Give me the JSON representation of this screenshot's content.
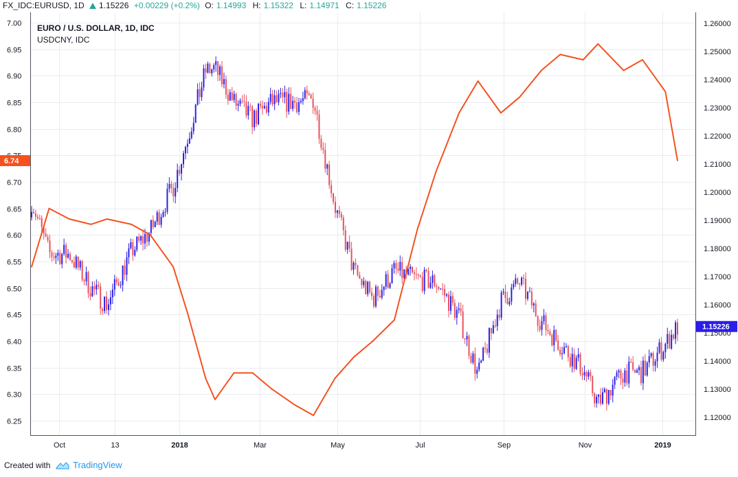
{
  "header": {
    "symbol": "FX_IDC:EURUSD, 1D",
    "last": "1.15226",
    "change": "+0.00229 (+0.2%)",
    "o_label": "O:",
    "o_value": "1.14993",
    "h_label": "H:",
    "h_value": "1.15322",
    "l_label": "L:",
    "l_value": "1.14971",
    "c_label": "C:",
    "c_value": "1.15226"
  },
  "footer": {
    "text": "Created with",
    "brand": "TradingView"
  },
  "colors": {
    "candle_up": "#2a1ee8",
    "candle_down": "#e8505b",
    "line": "#f4511e",
    "grid": "#e9ecf2",
    "axis_text": "#131722"
  },
  "chart_data": {
    "type": "line",
    "title": "EURO / U.S. DOLLAR, 1D, IDC",
    "subtitle": "USDCNY, IDC",
    "x_ticks": [
      "Oct",
      "13",
      "2018",
      "Mar",
      "May",
      "Jul",
      "Sep",
      "Nov",
      "2019"
    ],
    "x_ticks_bold": [
      "2018",
      "2019"
    ],
    "left_axis": {
      "ticks": [
        "7.00",
        "6.95",
        "6.90",
        "6.85",
        "6.80",
        "6.75",
        "6.70",
        "6.65",
        "6.60",
        "6.55",
        "6.50",
        "6.45",
        "6.40",
        "6.35",
        "6.30",
        "6.25"
      ],
      "ylim": [
        6.23,
        7.0
      ],
      "last_value_label": "6.74"
    },
    "right_axis": {
      "ticks": [
        "1.26000",
        "1.25000",
        "1.24000",
        "1.23000",
        "1.22000",
        "1.21000",
        "1.20000",
        "1.19000",
        "1.18000",
        "1.17000",
        "1.16000",
        "1.15000",
        "1.14000",
        "1.13000",
        "1.12000"
      ],
      "ylim": [
        1.1175,
        1.2625
      ],
      "last_value_label": "1.15226"
    },
    "grid": true,
    "series": [
      {
        "name": "EURO / U.S. DOLLAR, 1D, IDC",
        "style": "candles",
        "axis": "right",
        "x": [
          "2017-09-18",
          "2017-10-01",
          "2017-10-16",
          "2017-11-01",
          "2017-11-13",
          "2017-12-01",
          "2017-12-15",
          "2018-01-01",
          "2018-01-12",
          "2018-01-25",
          "2018-02-01",
          "2018-02-15",
          "2018-03-01",
          "2018-03-15",
          "2018-04-01",
          "2018-04-15",
          "2018-05-01",
          "2018-05-15",
          "2018-05-29",
          "2018-06-14",
          "2018-07-01",
          "2018-07-15",
          "2018-08-01",
          "2018-08-15",
          "2018-09-01",
          "2018-09-15",
          "2018-10-01",
          "2018-10-15",
          "2018-11-01",
          "2018-11-12",
          "2018-12-01",
          "2018-12-15",
          "2019-01-01",
          "2019-01-10"
        ],
        "close": [
          1.197,
          1.178,
          1.178,
          1.166,
          1.16,
          1.179,
          1.186,
          1.202,
          1.22,
          1.243,
          1.244,
          1.232,
          1.226,
          1.232,
          1.232,
          1.233,
          1.195,
          1.172,
          1.162,
          1.172,
          1.169,
          1.168,
          1.156,
          1.135,
          1.161,
          1.168,
          1.154,
          1.146,
          1.137,
          1.125,
          1.136,
          1.136,
          1.146,
          1.152
        ]
      },
      {
        "name": "USDCNY, IDC",
        "style": "line",
        "axis": "left",
        "x": [
          "2017-09-18",
          "2017-10-01",
          "2017-10-16",
          "2017-11-01",
          "2017-11-13",
          "2017-12-01",
          "2017-12-15",
          "2018-01-01",
          "2018-01-12",
          "2018-01-25",
          "2018-02-01",
          "2018-02-15",
          "2018-03-01",
          "2018-03-15",
          "2018-04-01",
          "2018-04-15",
          "2018-05-01",
          "2018-05-15",
          "2018-05-29",
          "2018-06-14",
          "2018-07-01",
          "2018-07-15",
          "2018-08-01",
          "2018-08-15",
          "2018-09-01",
          "2018-09-15",
          "2018-10-01",
          "2018-10-15",
          "2018-11-01",
          "2018-11-12",
          "2018-12-01",
          "2018-12-15",
          "2019-01-01",
          "2019-01-10"
        ],
        "y": [
          6.54,
          6.65,
          6.63,
          6.62,
          6.63,
          6.62,
          6.6,
          6.54,
          6.45,
          6.33,
          6.29,
          6.34,
          6.34,
          6.31,
          6.28,
          6.26,
          6.33,
          6.37,
          6.4,
          6.44,
          6.61,
          6.72,
          6.83,
          6.89,
          6.83,
          6.86,
          6.91,
          6.94,
          6.93,
          6.96,
          6.91,
          6.93,
          6.87,
          6.74
        ]
      }
    ]
  }
}
